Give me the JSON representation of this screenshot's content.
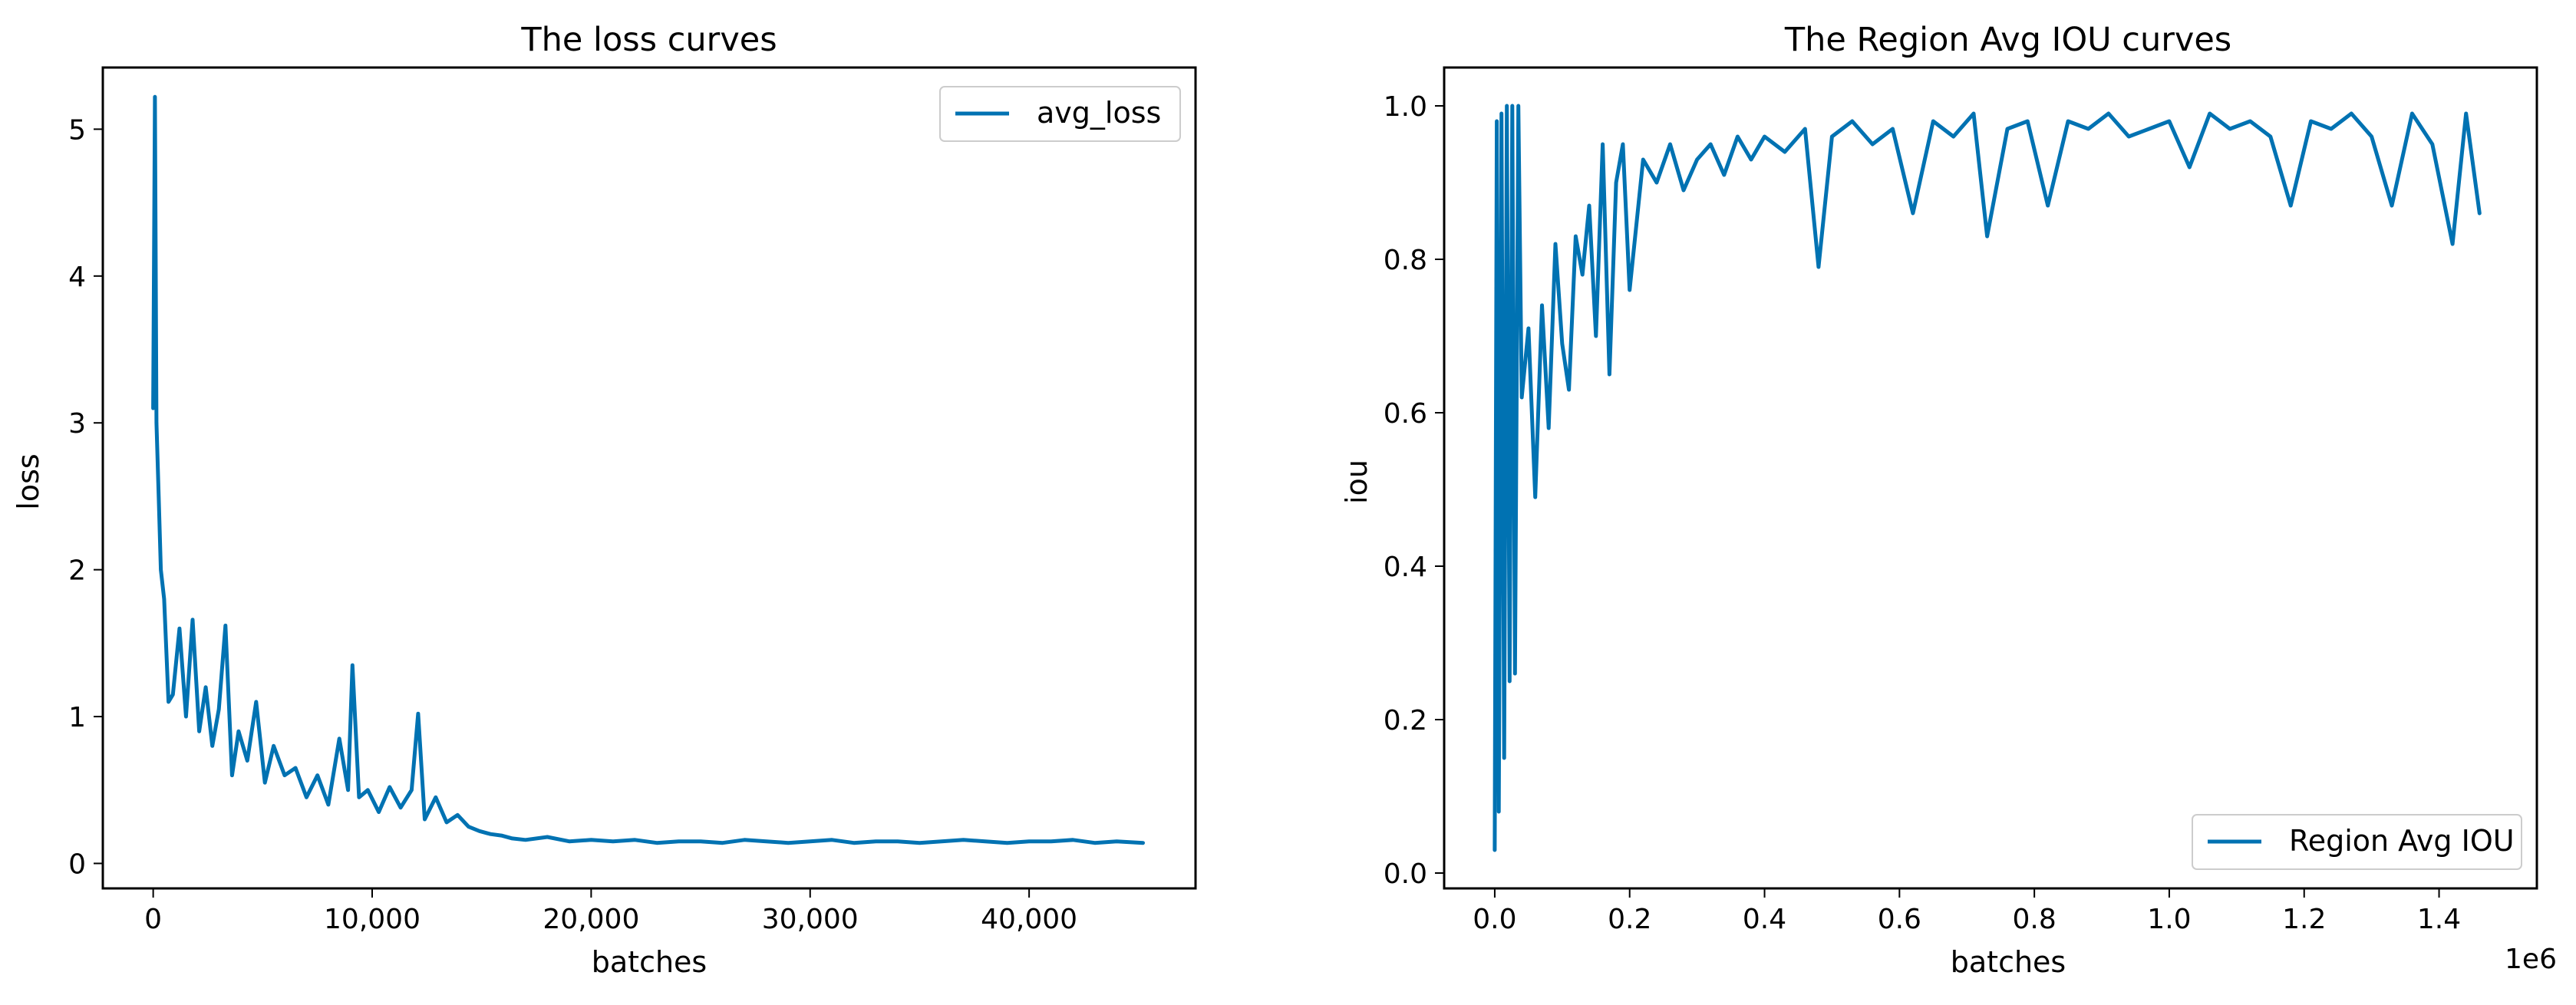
{
  "chart_data": [
    {
      "type": "line",
      "title": "The loss curves",
      "xlabel": "batches",
      "ylabel": "loss",
      "xlim": [
        -2300,
        47600
      ],
      "ylim": [
        -0.17,
        5.42
      ],
      "x_ticks": [
        0,
        10000,
        20000,
        30000,
        40000
      ],
      "x_tick_labels": [
        "0",
        "10,000",
        "20,000",
        "30,000",
        "40,000"
      ],
      "y_ticks": [
        0,
        1,
        2,
        3,
        4,
        5
      ],
      "y_tick_labels": [
        "0",
        "1",
        "2",
        "3",
        "4",
        "5"
      ],
      "x_offset_label": "",
      "grid": false,
      "legend_position": "upper right",
      "series": [
        {
          "name": "avg_loss",
          "color": "#0072b2",
          "x": [
            0,
            80,
            150,
            250,
            350,
            500,
            700,
            900,
            1200,
            1500,
            1800,
            2100,
            2400,
            2700,
            3000,
            3300,
            3600,
            3900,
            4300,
            4700,
            5100,
            5500,
            6000,
            6500,
            7000,
            7500,
            8000,
            8500,
            8900,
            9100,
            9400,
            9800,
            10300,
            10800,
            11300,
            11800,
            12100,
            12400,
            12900,
            13400,
            13900,
            14400,
            14900,
            15400,
            15900,
            16400,
            17000,
            18000,
            19000,
            20000,
            21000,
            22000,
            23000,
            24000,
            25000,
            26000,
            27000,
            28000,
            29000,
            30000,
            31000,
            32000,
            33000,
            34000,
            35000,
            36000,
            37000,
            38000,
            39000,
            40000,
            41000,
            42000,
            43000,
            44000,
            45200
          ],
          "y": [
            3.1,
            5.22,
            3.0,
            2.5,
            2.0,
            1.8,
            1.1,
            1.15,
            1.6,
            1.0,
            1.66,
            0.9,
            1.2,
            0.8,
            1.05,
            1.62,
            0.6,
            0.9,
            0.7,
            1.1,
            0.55,
            0.8,
            0.6,
            0.65,
            0.45,
            0.6,
            0.4,
            0.85,
            0.5,
            1.35,
            0.45,
            0.5,
            0.35,
            0.52,
            0.38,
            0.5,
            1.02,
            0.3,
            0.45,
            0.28,
            0.33,
            0.25,
            0.22,
            0.2,
            0.19,
            0.17,
            0.16,
            0.18,
            0.15,
            0.16,
            0.15,
            0.16,
            0.14,
            0.15,
            0.15,
            0.14,
            0.16,
            0.15,
            0.14,
            0.15,
            0.16,
            0.14,
            0.15,
            0.15,
            0.14,
            0.15,
            0.16,
            0.15,
            0.14,
            0.15,
            0.15,
            0.16,
            0.14,
            0.15,
            0.14
          ]
        }
      ]
    },
    {
      "type": "line",
      "title": "The Region Avg IOU curves",
      "xlabel": "batches",
      "ylabel": "iou",
      "xlim": [
        -75000,
        1545000
      ],
      "ylim": [
        -0.02,
        1.05
      ],
      "x_ticks": [
        0,
        200000,
        400000,
        600000,
        800000,
        1000000,
        1200000,
        1400000
      ],
      "x_tick_labels": [
        "0.0",
        "0.2",
        "0.4",
        "0.6",
        "0.8",
        "1.0",
        "1.2",
        "1.4"
      ],
      "y_ticks": [
        0,
        0.2,
        0.4,
        0.6,
        0.8,
        1.0
      ],
      "y_tick_labels": [
        "0.0",
        "0.2",
        "0.4",
        "0.6",
        "0.8",
        "1.0"
      ],
      "x_offset_label": "1e6",
      "grid": false,
      "legend_position": "lower right",
      "series": [
        {
          "name": "Region Avg IOU",
          "color": "#0072b2",
          "x": [
            0,
            3000,
            6000,
            10000,
            14000,
            18000,
            22000,
            26000,
            30000,
            35000,
            40000,
            50000,
            60000,
            70000,
            80000,
            90000,
            100000,
            110000,
            120000,
            130000,
            140000,
            150000,
            160000,
            170000,
            180000,
            190000,
            200000,
            220000,
            240000,
            260000,
            280000,
            300000,
            320000,
            340000,
            360000,
            380000,
            400000,
            430000,
            460000,
            480000,
            500000,
            530000,
            560000,
            590000,
            620000,
            650000,
            680000,
            710000,
            730000,
            760000,
            790000,
            820000,
            850000,
            880000,
            910000,
            940000,
            970000,
            1000000,
            1030000,
            1060000,
            1090000,
            1120000,
            1150000,
            1180000,
            1210000,
            1240000,
            1270000,
            1300000,
            1330000,
            1360000,
            1390000,
            1420000,
            1440000,
            1460000
          ],
          "y": [
            0.03,
            0.98,
            0.08,
            0.99,
            0.15,
            1.0,
            0.25,
            1.0,
            0.26,
            1.0,
            0.62,
            0.71,
            0.49,
            0.74,
            0.58,
            0.82,
            0.69,
            0.63,
            0.83,
            0.78,
            0.87,
            0.7,
            0.95,
            0.65,
            0.9,
            0.95,
            0.76,
            0.93,
            0.9,
            0.95,
            0.89,
            0.93,
            0.95,
            0.91,
            0.96,
            0.93,
            0.96,
            0.94,
            0.97,
            0.79,
            0.96,
            0.98,
            0.95,
            0.97,
            0.86,
            0.98,
            0.96,
            0.99,
            0.83,
            0.97,
            0.98,
            0.87,
            0.98,
            0.97,
            0.99,
            0.96,
            0.97,
            0.98,
            0.92,
            0.99,
            0.97,
            0.98,
            0.96,
            0.87,
            0.98,
            0.97,
            0.99,
            0.96,
            0.87,
            0.99,
            0.95,
            0.82,
            0.99,
            0.86
          ]
        }
      ]
    }
  ]
}
